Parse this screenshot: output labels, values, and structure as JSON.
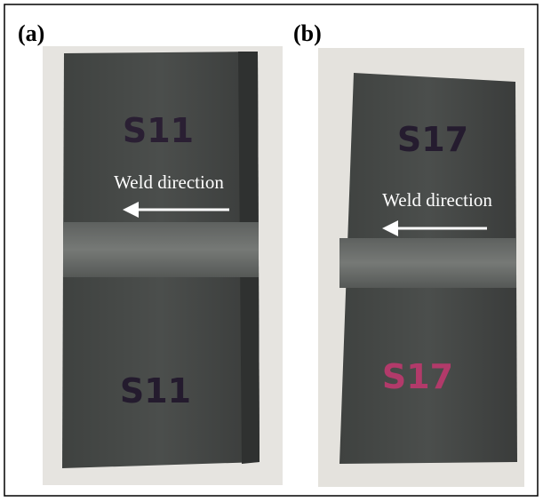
{
  "panels": [
    {
      "label": "(a)",
      "annotation": "Weld direction",
      "markings": [
        "S11",
        "S11"
      ]
    },
    {
      "label": "(b)",
      "annotation": "Weld direction",
      "markings": [
        "S17",
        "S17"
      ]
    }
  ]
}
